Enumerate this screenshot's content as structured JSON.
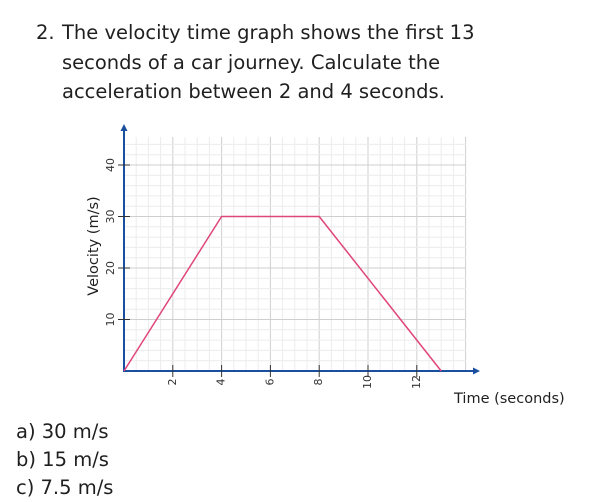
{
  "question": {
    "number": "2.",
    "lines": [
      "The velocity time graph shows the first 13",
      "seconds of a car journey. Calculate the",
      "acceleration between 2 and 4 seconds."
    ]
  },
  "answers": [
    "a) 30 m/s",
    "b) 15 m/s",
    "c) 7.5 m/s"
  ],
  "chart_data": {
    "type": "line",
    "xlabel": "Time (seconds)",
    "ylabel": "Velocity (m/s)",
    "xlim": [
      0,
      14
    ],
    "ylim": [
      0,
      43
    ],
    "x_ticks": [
      2,
      4,
      6,
      8,
      10,
      12
    ],
    "y_ticks": [
      10,
      20,
      30,
      40
    ],
    "grid": true,
    "series": [
      {
        "color": "#e0457b",
        "x": [
          0,
          4,
          8,
          13
        ],
        "y": [
          0,
          30,
          30,
          0
        ]
      }
    ],
    "axis_color": "#1a4fa0"
  }
}
